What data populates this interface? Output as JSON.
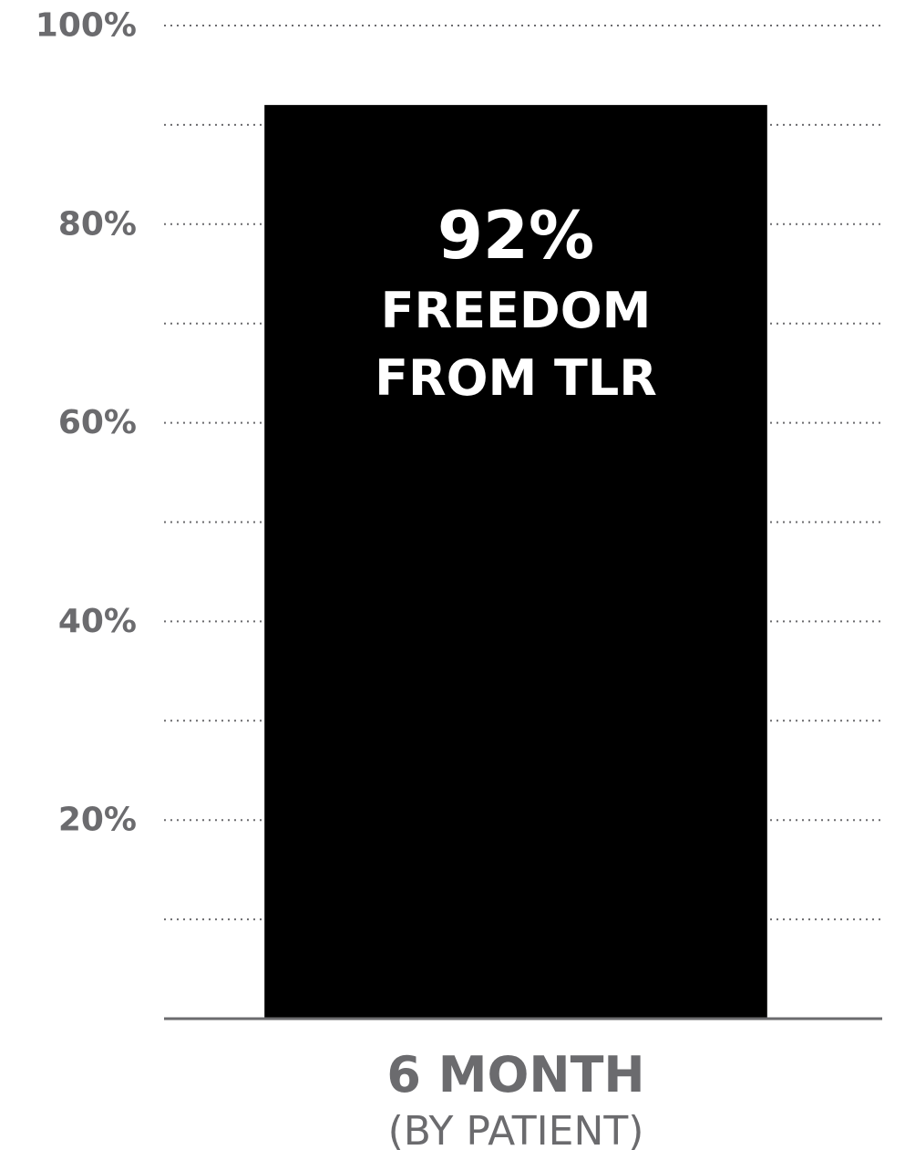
{
  "chart_data": {
    "type": "bar",
    "categories": [
      "6 MONTH"
    ],
    "category_sublabels": [
      "(BY PATIENT)"
    ],
    "values": [
      92
    ],
    "data_labels": [
      "92%"
    ],
    "bar_captions": [
      [
        "FREEDOM",
        "FROM TLR"
      ]
    ],
    "ylim": [
      0,
      100
    ],
    "yticks": [
      20,
      40,
      60,
      80,
      100
    ],
    "ytick_labels": [
      "20%",
      "40%",
      "60%",
      "80%",
      "100%"
    ],
    "gridlines": [
      10,
      20,
      30,
      40,
      50,
      60,
      70,
      80,
      90,
      100
    ],
    "grid": true,
    "colors": {
      "bar": "#000000",
      "grid": "#6b6b6e",
      "axis": "#6b6b6e",
      "text": "#6b6b6e",
      "bar_text": "#ffffff"
    }
  }
}
